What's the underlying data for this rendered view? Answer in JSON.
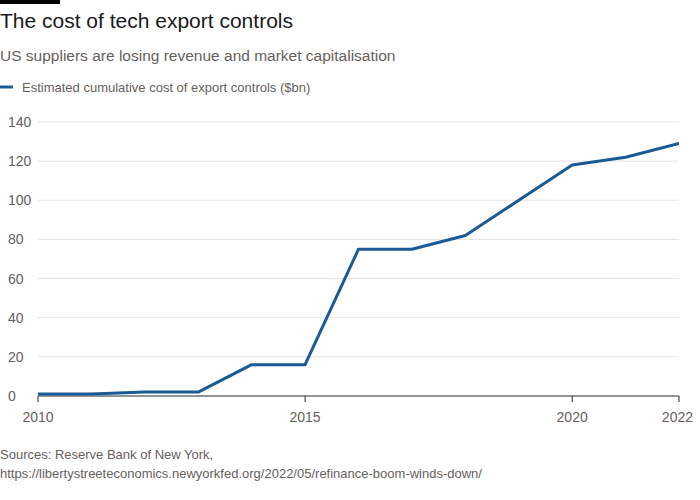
{
  "chart_data": {
    "type": "line",
    "title": "The cost of tech export controls",
    "subtitle": "US suppliers are losing revenue and market capitalisation",
    "source": [
      "Sources: Reserve Bank of New York,",
      "https://libertystreeteconomics.newyorkfed.org/2022/05/refinance-boom-winds-down/"
    ],
    "x": [
      2010,
      2011,
      2012,
      2013,
      2014,
      2015,
      2016,
      2017,
      2018,
      2019,
      2020,
      2021,
      2022
    ],
    "series": [
      {
        "name": "Estimated cumulative cost of export controls ($bn)",
        "color": "#1a5a96",
        "values": [
          1,
          1,
          2,
          2,
          16,
          16,
          75,
          75,
          82,
          100,
          118,
          122,
          129
        ]
      }
    ],
    "xlim": [
      2010,
      2022
    ],
    "xticks": [
      2010,
      2015,
      2020,
      2022
    ],
    "ylim": [
      0,
      140
    ],
    "yticks": [
      0,
      20,
      40,
      60,
      80,
      100,
      120,
      140
    ],
    "grid": true,
    "legend": "top-left"
  }
}
